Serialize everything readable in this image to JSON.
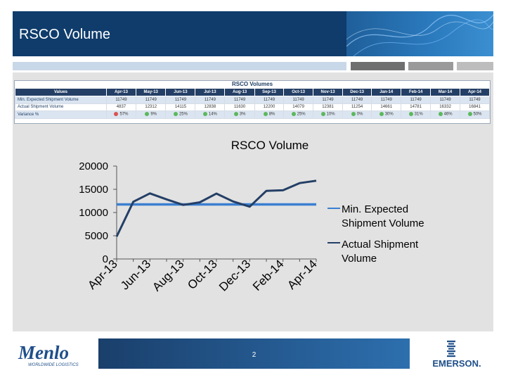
{
  "header": {
    "title": "RSCO Volume"
  },
  "table": {
    "title": "RSCO Volumes",
    "columns": [
      "Values",
      "Apr-13",
      "May-13",
      "Jun-13",
      "Jul-13",
      "Aug-13",
      "Sep-13",
      "Oct-13",
      "Nov-13",
      "Dec-13",
      "Jan-14",
      "Feb-14",
      "Mar-14",
      "Apr-14"
    ],
    "rows": [
      {
        "label": "Min. Expected Shipment Volume",
        "cells": [
          "11749",
          "11749",
          "11749",
          "11749",
          "11749",
          "11749",
          "11749",
          "11749",
          "11749",
          "11749",
          "11749",
          "11749",
          "11749"
        ]
      },
      {
        "label": "Actual Shipment Volume",
        "cells": [
          "4837",
          "12312",
          "14115",
          "12838",
          "11630",
          "12200",
          "14079",
          "12381",
          "11254",
          "14661",
          "14781",
          "16332",
          "16841"
        ]
      },
      {
        "label": "Variance %",
        "cells": [
          "57%",
          "9%",
          "25%",
          "14%",
          "3%",
          "8%",
          "25%",
          "10%",
          "0%",
          "30%",
          "31%",
          "46%",
          "50%"
        ],
        "status": [
          "#d9534f",
          "#5cb85c",
          "#5cb85c",
          "#5cb85c",
          "#5cb85c",
          "#5cb85c",
          "#5cb85c",
          "#5cb85c",
          "#5cb85c",
          "#5cb85c",
          "#5cb85c",
          "#5cb85c",
          "#5cb85c"
        ]
      }
    ]
  },
  "chart_data": {
    "type": "line",
    "title": "RSCO Volume",
    "categories": [
      "Apr-13",
      "May-13",
      "Jun-13",
      "Jul-13",
      "Aug-13",
      "Sep-13",
      "Oct-13",
      "Nov-13",
      "Dec-13",
      "Jan-14",
      "Feb-14",
      "Mar-14",
      "Apr-14"
    ],
    "x_tick_labels": [
      "Apr-13",
      "Jun-13",
      "Aug-13",
      "Oct-13",
      "Dec-13",
      "Feb-14",
      "Apr-14"
    ],
    "y_ticks": [
      "0",
      "5000",
      "10000",
      "15000",
      "20000"
    ],
    "ylim": [
      0,
      20000
    ],
    "grid": false,
    "legend_position": "right",
    "series": [
      {
        "name": "Min. Expected Shipment Volume",
        "color": "#3b7fd0",
        "values": [
          11749,
          11749,
          11749,
          11749,
          11749,
          11749,
          11749,
          11749,
          11749,
          11749,
          11749,
          11749,
          11749
        ]
      },
      {
        "name": "Actual Shipment Volume",
        "color": "#243f66",
        "values": [
          4837,
          12312,
          14115,
          12838,
          11630,
          12200,
          14079,
          12381,
          11254,
          14661,
          14781,
          16332,
          16841
        ]
      }
    ]
  },
  "footer": {
    "page_number": "2",
    "left_logo": {
      "icon": "menlo-logo",
      "name": "Menlo",
      "tagline": "WORLDWIDE LOGISTICS"
    },
    "right_logo": {
      "icon": "emerson-logo",
      "name": "EMERSON."
    }
  }
}
